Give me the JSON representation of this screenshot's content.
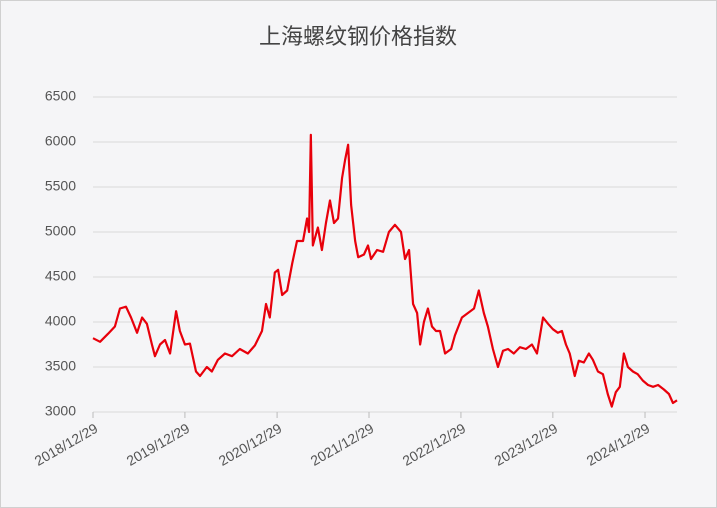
{
  "chart_data": {
    "type": "line",
    "title": "上海螺纹钢价格指数",
    "x": [
      "2018/12/29",
      "2019/01/26",
      "2019/02/27",
      "2019/03/26",
      "2019/04/15",
      "2019/05/09",
      "2019/05/29",
      "2019/06/22",
      "2019/07/12",
      "2019/07/31",
      "2019/08/20",
      "2019/09/01",
      "2019/09/21",
      "2019/10/11",
      "2019/10/31",
      "2019/11/24",
      "2019/12/09",
      "2019/12/29",
      "2020/01/18",
      "2020/02/11",
      "2020/02/27",
      "2020/03/25",
      "2020/04/14",
      "2020/05/08",
      "2020/06/05",
      "2020/07/03",
      "2020/08/03",
      "2020/09/04",
      "2020/10/02",
      "2020/10/30",
      "2020/11/15",
      "2020/11/30",
      "2020/12/20",
      "2021/01/02",
      "2021/01/18",
      "2021/02/07",
      "2021/02/27",
      "2021/03/18",
      "2021/04/11",
      "2021/04/27",
      "2021/05/05",
      "2021/05/12",
      "2021/05/20",
      "2021/06/09",
      "2021/06/25",
      "2021/07/11",
      "2021/07/27",
      "2021/08/12",
      "2021/08/28",
      "2021/09/13",
      "2021/09/25",
      "2021/10/07",
      "2021/10/19",
      "2021/11/04",
      "2021/11/16",
      "2021/12/09",
      "2021/12/25",
      "2022/01/06",
      "2022/01/30",
      "2022/02/23",
      "2022/03/18",
      "2022/04/11",
      "2022/05/05",
      "2022/05/21",
      "2022/06/06",
      "2022/06/22",
      "2022/07/08",
      "2022/07/20",
      "2022/08/04",
      "2022/08/20",
      "2022/09/05",
      "2022/09/21",
      "2022/10/07",
      "2022/10/27",
      "2022/11/20",
      "2022/12/05",
      "2023/01/02",
      "2023/01/26",
      "2023/02/19",
      "2023/03/10",
      "2023/03/30",
      "2023/04/15",
      "2023/05/05",
      "2023/05/25",
      "2023/06/14",
      "2023/07/04",
      "2023/07/27",
      "2023/08/20",
      "2023/09/13",
      "2023/10/07",
      "2023/10/27",
      "2023/11/20",
      "2023/12/10",
      "2023/12/29",
      "2024/01/18",
      "2024/02/03",
      "2024/02/19",
      "2024/03/05",
      "2024/03/25",
      "2024/04/10",
      "2024/04/30",
      "2024/05/20",
      "2024/06/05",
      "2024/06/25",
      "2024/07/15",
      "2024/08/03",
      "2024/08/19",
      "2024/09/04",
      "2024/09/20",
      "2024/10/06",
      "2024/10/22",
      "2024/11/11",
      "2024/11/30",
      "2024/12/20",
      "2025/01/10",
      "2025/01/30",
      "2025/02/19",
      "2025/03/14",
      "2025/04/03",
      "2025/04/19",
      "2025/05/05"
    ],
    "values": [
      3820,
      3780,
      3870,
      3950,
      4150,
      4170,
      4050,
      3880,
      4050,
      3980,
      3750,
      3620,
      3750,
      3800,
      3650,
      4120,
      3900,
      3750,
      3760,
      3450,
      3400,
      3500,
      3450,
      3580,
      3650,
      3620,
      3700,
      3650,
      3740,
      3900,
      4200,
      4050,
      4550,
      4580,
      4300,
      4350,
      4650,
      4900,
      4900,
      5150,
      5000,
      6080,
      4850,
      5050,
      4800,
      5100,
      5350,
      5100,
      5150,
      5600,
      5800,
      5970,
      5300,
      4900,
      4720,
      4750,
      4850,
      4700,
      4800,
      4780,
      5000,
      5080,
      5000,
      4700,
      4800,
      4200,
      4100,
      3750,
      4000,
      4150,
      3950,
      3900,
      3900,
      3650,
      3700,
      3850,
      4050,
      4100,
      4150,
      4350,
      4100,
      3950,
      3700,
      3500,
      3680,
      3700,
      3650,
      3720,
      3700,
      3750,
      3650,
      4050,
      3980,
      3920,
      3880,
      3900,
      3750,
      3650,
      3400,
      3570,
      3550,
      3650,
      3580,
      3450,
      3420,
      3200,
      3060,
      3220,
      3280,
      3650,
      3500,
      3450,
      3420,
      3350,
      3300,
      3280,
      3300,
      3250,
      3200,
      3100,
      3130
    ],
    "color": "#e8000b",
    "xlim": [
      "2018/12/29",
      "2025/05/05"
    ],
    "xticks": [
      "2018/12/29",
      "2019/12/29",
      "2020/12/29",
      "2021/12/29",
      "2022/12/29",
      "2023/12/29",
      "2024/12/29"
    ],
    "ylim": [
      3000,
      6500
    ],
    "yticks": [
      3000,
      3500,
      4000,
      4500,
      5000,
      5500,
      6000,
      6500
    ],
    "grid": true
  }
}
